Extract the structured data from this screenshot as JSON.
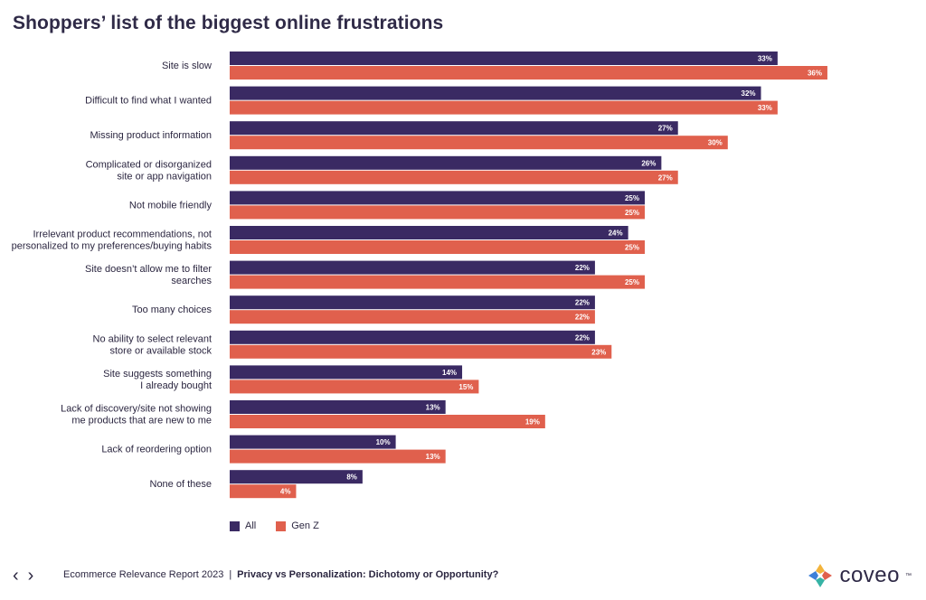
{
  "title": "Shoppers’ list of the biggest online frustrations",
  "colors": {
    "all": "#3a2a63",
    "genz": "#e0604d"
  },
  "chart_data": {
    "type": "bar",
    "orientation": "horizontal",
    "title": "Shoppers’ list of the biggest online frustrations",
    "categories": [
      [
        "Site is slow"
      ],
      [
        "Difficult to find what I wanted"
      ],
      [
        "Missing product information"
      ],
      [
        "Complicated or disorganized",
        "site or app navigation"
      ],
      [
        "Not mobile friendly"
      ],
      [
        "Irrelevant product recommendations, not",
        "personalized to my preferences/buying habits"
      ],
      [
        "Site doesn’t allow me to filter",
        "searches"
      ],
      [
        "Too many choices"
      ],
      [
        "No ability to select relevant",
        "store or available stock"
      ],
      [
        "Site suggests something",
        "I already bought"
      ],
      [
        "Lack of discovery/site not showing",
        "me products that are new to me"
      ],
      [
        "Lack of reordering option"
      ],
      [
        "None of these"
      ]
    ],
    "series": [
      {
        "name": "All",
        "values": [
          33,
          32,
          27,
          26,
          25,
          24,
          22,
          22,
          22,
          14,
          13,
          10,
          8
        ]
      },
      {
        "name": "Gen Z",
        "values": [
          36,
          33,
          30,
          27,
          25,
          25,
          25,
          22,
          23,
          15,
          19,
          13,
          4
        ]
      }
    ],
    "xlim": [
      0,
      36
    ],
    "value_suffix": "%",
    "grid": false,
    "legend_position": "bottom-left"
  },
  "legend": {
    "all": "All",
    "genz": "Gen Z"
  },
  "footer": {
    "prev": "‹",
    "next": "›",
    "report": "Ecommerce Relevance Report 2023",
    "separator": "|",
    "subtitle": "Privacy vs Personalization: Dichotomy or Opportunity?",
    "logo": "coveo",
    "tm": "™"
  }
}
